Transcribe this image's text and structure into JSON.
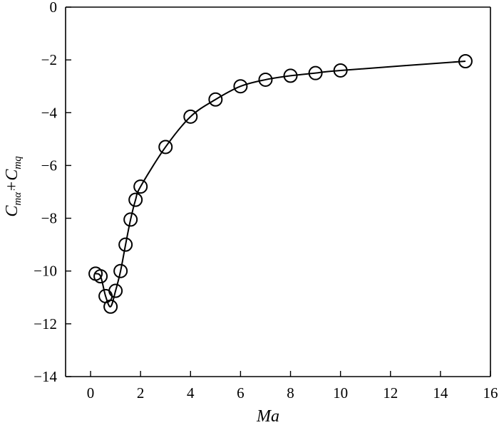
{
  "chart_data": {
    "type": "line",
    "xlabel": "Ma",
    "ylabel_parts": {
      "c1": "C",
      "sub1": "mα̇",
      "plus": "+",
      "c2": "C",
      "sub2": "mq"
    },
    "xlim": [
      -1,
      16
    ],
    "ylim": [
      -14,
      0
    ],
    "xticks": [
      0,
      2,
      4,
      6,
      8,
      10,
      12,
      14,
      16
    ],
    "yticks": [
      0,
      -2,
      -4,
      -6,
      -8,
      -10,
      -12,
      -14
    ],
    "series": [
      {
        "marker": "open-circle",
        "x": [
          0.2,
          0.4,
          0.6,
          0.8,
          1.0,
          1.2,
          1.4,
          1.6,
          1.8,
          2.0,
          3.0,
          4.0,
          5.0,
          6.0,
          7.0,
          8.0,
          9.0,
          10.0,
          15.0
        ],
        "y": [
          -10.1,
          -10.2,
          -10.95,
          -11.35,
          -10.75,
          -10.0,
          -9.0,
          -8.05,
          -7.3,
          -6.8,
          -5.3,
          -4.15,
          -3.5,
          -3.0,
          -2.75,
          -2.6,
          -2.5,
          -2.4,
          -2.05
        ]
      }
    ],
    "grid": false,
    "colors": {
      "line": "#000000",
      "marker": "#000000",
      "background": "#ffffff"
    }
  }
}
